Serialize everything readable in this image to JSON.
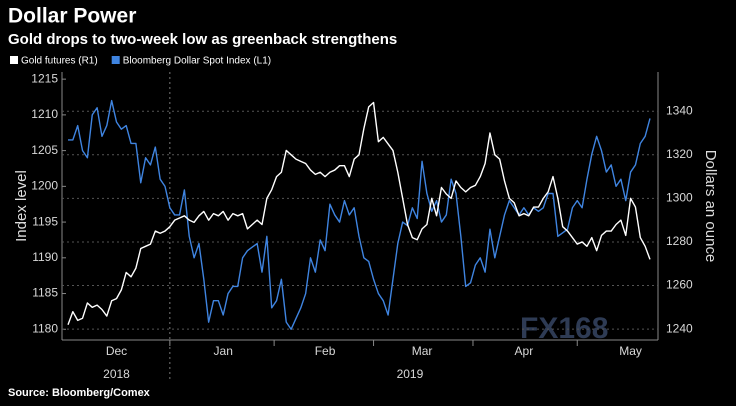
{
  "chart_data": {
    "type": "line",
    "title": "Dollar Power",
    "subtitle": "Gold drops to two-week low as greenback strengthens",
    "y_label": "Index level",
    "y2_label": "Dollars an ounce",
    "source": "Source: Bloomberg/Comex",
    "watermark": "FX168",
    "year_labels": [
      "2018",
      "2019"
    ],
    "categories": [
      null,
      null,
      null,
      null,
      null,
      null,
      null,
      null,
      null,
      null,
      "Dec",
      null,
      null,
      null,
      null,
      null,
      null,
      null,
      null,
      null,
      null,
      null,
      null,
      null,
      null,
      null,
      null,
      null,
      null,
      null,
      null,
      null,
      "Jan",
      null,
      null,
      null,
      null,
      null,
      null,
      null,
      null,
      null,
      null,
      null,
      null,
      null,
      null,
      null,
      null,
      null,
      null,
      null,
      null,
      "Feb",
      null,
      null,
      null,
      null,
      null,
      null,
      null,
      null,
      null,
      null,
      null,
      null,
      null,
      null,
      null,
      null,
      null,
      null,
      null,
      "Mar",
      null,
      null,
      null,
      null,
      null,
      null,
      null,
      null,
      null,
      null,
      null,
      null,
      null,
      null,
      null,
      null,
      null,
      null,
      null,
      null,
      "Apr",
      null,
      null,
      null,
      null,
      null,
      null,
      null,
      null,
      null,
      null,
      null,
      null,
      null,
      null,
      null,
      null,
      null,
      null,
      null,
      null,
      null,
      "May",
      null,
      null,
      null,
      null
    ],
    "series": [
      {
        "name": "Gold futures (R1)",
        "color": "#ffffff",
        "axis": "y2",
        "values": [
          1242,
          1248,
          1244,
          1245,
          1252,
          1250,
          1251,
          1249,
          1246,
          1253,
          1254,
          1258,
          1266,
          1264,
          1268,
          1277,
          1278,
          1279,
          1285,
          1284,
          1285,
          1287,
          1290,
          1291,
          1292,
          1290,
          1289,
          1292,
          1294,
          1290,
          1293,
          1292,
          1294,
          1290,
          1293,
          1292,
          1293,
          1286,
          1288,
          1290,
          1288,
          1300,
          1304,
          1310,
          1312,
          1322,
          1320,
          1318,
          1317,
          1316,
          1313,
          1311,
          1312,
          1310,
          1312,
          1313,
          1315,
          1315,
          1310,
          1318,
          1320,
          1332,
          1342,
          1344,
          1326,
          1328,
          1325,
          1322,
          1312,
          1300,
          1288,
          1282,
          1281,
          1286,
          1288,
          1300,
          1292,
          1305,
          1302,
          1300,
          1308,
          1305,
          1303,
          1305,
          1306,
          1310,
          1316,
          1330,
          1320,
          1318,
          1308,
          1300,
          1298,
          1292,
          1293,
          1292,
          1296,
          1296,
          1300,
          1303,
          1310,
          1300,
          1287,
          1285,
          1282,
          1279,
          1280,
          1278,
          1282,
          1276,
          1283,
          1285,
          1285,
          1288,
          1290,
          1283,
          1300,
          1296,
          1282,
          1278,
          1272
        ]
      },
      {
        "name": "Bloomberg Dollar Spot Index (L1)",
        "color": "#3f84e0",
        "axis": "y",
        "values": [
          1206.5,
          1206.5,
          1208.5,
          1205,
          1204,
          1210,
          1211,
          1207,
          1208.5,
          1212,
          1209,
          1208,
          1208.5,
          1206,
          1206,
          1200.5,
          1204,
          1203,
          1205.5,
          1201,
          1200,
          1197,
          1196,
          1196,
          1199.5,
          1193,
          1190,
          1192,
          1187,
          1181,
          1184,
          1184,
          1182,
          1185,
          1186,
          1186,
          1190,
          1191,
          1191.5,
          1192,
          1188,
          1193,
          1183,
          1184,
          1187,
          1181,
          1180,
          1181.5,
          1183,
          1185,
          1190,
          1188,
          1192.5,
          1191,
          1197.5,
          1196,
          1195,
          1198,
          1196,
          1197,
          1193,
          1190,
          1189.5,
          1187,
          1185,
          1184,
          1182,
          1187,
          1192,
          1195,
          1194.5,
          1197,
          1195.5,
          1203.5,
          1199,
          1196.5,
          1198,
          1195,
          1196,
          1201,
          1199,
          1193,
          1186,
          1186.5,
          1189,
          1190,
          1188,
          1194,
          1190,
          1193,
          1196,
          1198,
          1197,
          1196,
          1197,
          1196,
          1197,
          1196.5,
          1197,
          1199,
          1199,
          1193,
          1193.5,
          1194,
          1197,
          1198,
          1197,
          1201,
          1204.5,
          1207,
          1205,
          1202,
          1203,
          1200,
          1201,
          1198,
          1202,
          1203,
          1206,
          1207,
          1209.5
        ]
      }
    ],
    "ylim": [
      1178.5,
      1216
    ],
    "yticks": [
      1180,
      1185,
      1190,
      1195,
      1200,
      1205,
      1210,
      1215
    ],
    "y2lim": [
      1235,
      1358
    ],
    "y2ticks": [
      1240,
      1260,
      1280,
      1300,
      1320,
      1340
    ],
    "grid": true
  }
}
